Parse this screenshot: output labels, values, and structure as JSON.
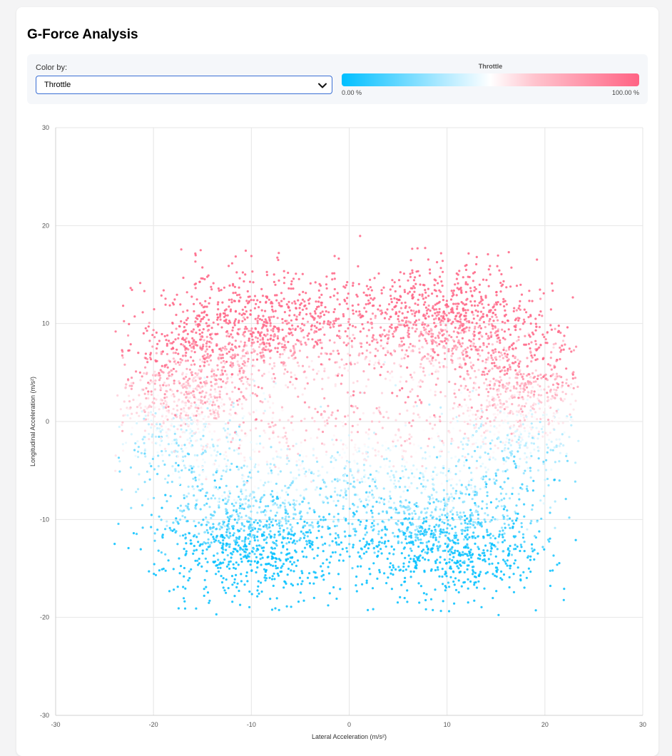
{
  "page": {
    "title": "G-Force Analysis"
  },
  "controls": {
    "color_by_label": "Color by:",
    "color_by_value": "Throttle"
  },
  "legend": {
    "title": "Throttle",
    "min_label": "0.00 %",
    "max_label": "100.00 %",
    "colors": {
      "low": "#00bfff",
      "mid": "#ffffff",
      "high": "#ff6384"
    }
  },
  "chart_data": {
    "type": "scatter",
    "title": "",
    "xlabel": "Lateral Acceleration (m/s²)",
    "ylabel": "Longitudinal Acceleration (m/s²)",
    "xlim": [
      -30,
      30
    ],
    "ylim": [
      -30,
      30
    ],
    "xticks": [
      -30,
      -20,
      -10,
      0,
      10,
      20,
      30
    ],
    "yticks": [
      30,
      20,
      10,
      0,
      -10,
      -20,
      -30
    ],
    "grid": true,
    "color_variable": "Throttle",
    "color_range": [
      0,
      100
    ],
    "clusters": [
      {
        "cx": -9,
        "cy": 9,
        "sx": 5.5,
        "sy": 3.0,
        "throttle": 95
      },
      {
        "cx": 9,
        "cy": 10,
        "sx": 5.0,
        "sy": 3.0,
        "throttle": 95
      },
      {
        "cx": -17,
        "cy": 2,
        "sx": 3.5,
        "sy": 4.0,
        "throttle": 65
      },
      {
        "cx": 17,
        "cy": 2,
        "sx": 3.5,
        "sy": 4.0,
        "throttle": 65
      },
      {
        "cx": 0,
        "cy": -4,
        "sx": 10.0,
        "sy": 3.5,
        "throttle": 45
      },
      {
        "cx": -10,
        "cy": -12,
        "sx": 5.0,
        "sy": 3.0,
        "throttle": 5
      },
      {
        "cx": 10,
        "cy": -12,
        "sx": 5.0,
        "sy": 3.0,
        "throttle": 5
      }
    ]
  }
}
